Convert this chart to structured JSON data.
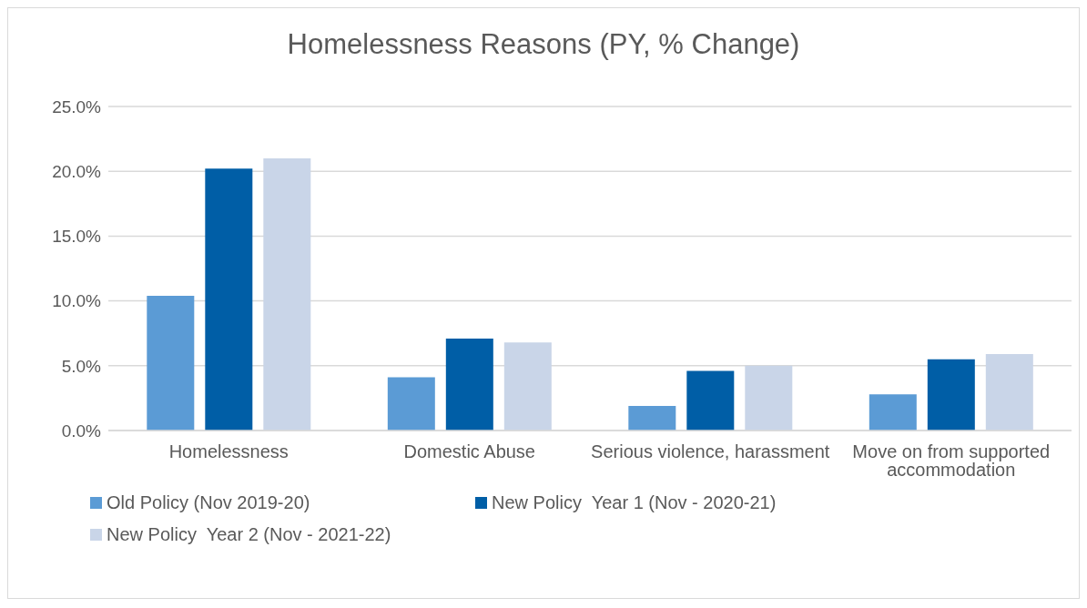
{
  "chart_data": {
    "type": "bar",
    "title": "Homelessness Reasons (PY, % Change)",
    "categories": [
      "Homelessness",
      "Domestic Abuse",
      "Serious violence, harassment",
      "Move on from supported accommodation"
    ],
    "series": [
      {
        "name": "Old Policy (Nov 2019-20)",
        "color": "#5b9bd5",
        "values": [
          10.4,
          4.1,
          1.9,
          2.8
        ]
      },
      {
        "name": "New Policy  Year 1 (Nov - 2020-21)",
        "color": "#005ea6",
        "values": [
          20.2,
          7.1,
          4.6,
          5.5
        ]
      },
      {
        "name": "New Policy  Year 2 (Nov - 2021-22)",
        "color": "#c9d5e8",
        "values": [
          21.0,
          6.8,
          5.0,
          5.9
        ]
      }
    ],
    "ylim": [
      0,
      25
    ],
    "yticks": [
      {
        "value": 0,
        "label": "0.0%"
      },
      {
        "value": 5,
        "label": "5.0%"
      },
      {
        "value": 10,
        "label": "10.0%"
      },
      {
        "value": 15,
        "label": "15.0%"
      },
      {
        "value": 20,
        "label": "20.0%"
      },
      {
        "value": 25,
        "label": "25.0%"
      }
    ],
    "grid": "y",
    "legend": "bottom left"
  }
}
